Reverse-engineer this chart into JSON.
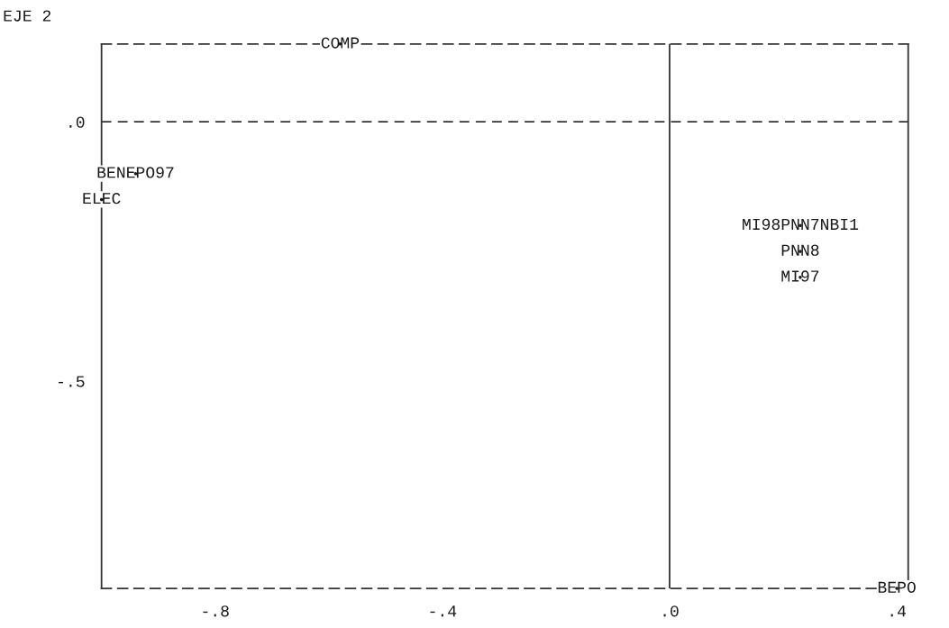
{
  "chart_data": {
    "type": "scatter",
    "title": "EJE 2",
    "grid": false,
    "legend": false,
    "x": [
      -0.58,
      -0.94,
      -1.0,
      0.23,
      0.23,
      0.23,
      0.4
    ],
    "values": [
      0.15,
      -0.1,
      -0.15,
      -0.2,
      -0.25,
      -0.3,
      -0.9
    ],
    "value_labels": [
      "COMP",
      "BENEPO97",
      "ELEC",
      "MI98PNN7NBI1",
      "PNN8",
      "MI97",
      "BEPO"
    ],
    "xlim": [
      -1.0,
      0.42
    ],
    "ylim": [
      -0.9,
      0.15
    ],
    "xticks": [
      {
        "value": -0.8,
        "label": "-.8"
      },
      {
        "value": -0.4,
        "label": "-.4"
      },
      {
        "value": 0,
        "label": ".0"
      },
      {
        "value": 0.4,
        "label": ".4"
      }
    ],
    "yticks": [
      {
        "value": 0,
        "label": ".0"
      },
      {
        "value": -0.5,
        "label": "-.5"
      }
    ],
    "ref_lines": [
      {
        "axis": "y",
        "value": 0,
        "line_style": "dashed",
        "color": "#333333"
      },
      {
        "axis": "x",
        "value": 0,
        "line_style": "solid",
        "color": "#333333"
      }
    ]
  }
}
